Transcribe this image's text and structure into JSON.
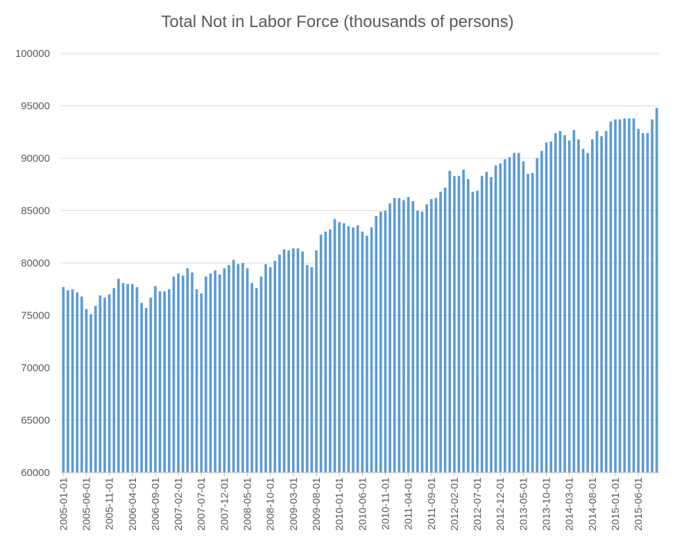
{
  "chart_data": {
    "type": "bar",
    "title": "Total Not in Labor Force (thousands of persons)",
    "xlabel": "",
    "ylabel": "",
    "ylim": [
      60000,
      100000
    ],
    "yticks": [
      60000,
      65000,
      70000,
      75000,
      80000,
      85000,
      90000,
      95000,
      100000
    ],
    "grid": true,
    "legend": "none",
    "bar_color": "#5b9bd5",
    "start": "2005-01",
    "xtick_labels": [
      "2005-01-01",
      "2005-06-01",
      "2005-11-01",
      "2006-04-01",
      "2006-09-01",
      "2007-02-01",
      "2007-07-01",
      "2007-12-01",
      "2008-05-01",
      "2008-10-01",
      "2009-03-01",
      "2009-08-01",
      "2010-01-01",
      "2010-06-01",
      "2010-11-01",
      "2011-04-01",
      "2011-09-01",
      "2012-02-01",
      "2012-07-01",
      "2012-12-01",
      "2013-05-01",
      "2013-10-01",
      "2014-03-01",
      "2014-08-01",
      "2015-01-01",
      "2015-06-01"
    ],
    "values": [
      77700,
      77400,
      77500,
      77200,
      76800,
      75600,
      75100,
      75900,
      76900,
      76700,
      77000,
      77600,
      78500,
      78100,
      78000,
      78000,
      77700,
      76200,
      75700,
      76700,
      77800,
      77300,
      77300,
      77500,
      78700,
      79000,
      78800,
      79500,
      79100,
      77500,
      77100,
      78700,
      79000,
      79300,
      78900,
      79500,
      79800,
      80300,
      79900,
      80000,
      79500,
      78100,
      77600,
      78700,
      79900,
      79600,
      80200,
      80800,
      81300,
      81200,
      81400,
      81400,
      81100,
      79800,
      79600,
      81200,
      82700,
      83000,
      83200,
      84200,
      83900,
      83800,
      83500,
      83400,
      83600,
      83000,
      82600,
      83400,
      84500,
      84900,
      85000,
      85700,
      86200,
      86200,
      86000,
      86300,
      85900,
      85000,
      84900,
      85600,
      86100,
      86200,
      86800,
      87200,
      88800,
      88300,
      88300,
      88900,
      88000,
      86800,
      86900,
      88300,
      88700,
      88200,
      89300,
      89500,
      89900,
      90100,
      90500,
      90500,
      89700,
      88500,
      88600,
      90000,
      90700,
      91500,
      91600,
      92400,
      92600,
      92200,
      91700,
      92700,
      91800,
      90900,
      90500,
      91800,
      92600,
      92100,
      92600,
      93500,
      93700,
      93700,
      93800,
      93800,
      93800,
      92800,
      92400,
      92400,
      93700,
      94800
    ]
  }
}
